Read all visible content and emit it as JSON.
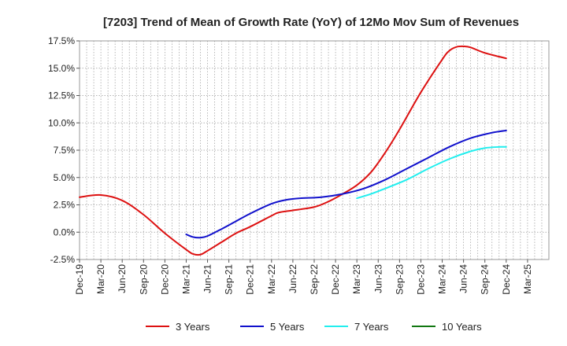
{
  "chart_data": {
    "type": "line",
    "title": "[7203]  Trend of Mean of Growth Rate (YoY) of 12Mo Mov Sum of Revenues",
    "xlabel": "",
    "ylabel": "",
    "ylim": [
      -2.5,
      17.5
    ],
    "yticks": [
      -2.5,
      0.0,
      2.5,
      5.0,
      7.5,
      10.0,
      12.5,
      15.0,
      17.5
    ],
    "ytick_labels": [
      "-2.5%",
      "0.0%",
      "2.5%",
      "5.0%",
      "7.5%",
      "10.0%",
      "12.5%",
      "15.0%",
      "17.5%"
    ],
    "xlim": [
      0,
      66
    ],
    "xtick_labels": [
      "Dec-19",
      "Mar-20",
      "Jun-20",
      "Sep-20",
      "Dec-20",
      "Mar-21",
      "Jun-21",
      "Sep-21",
      "Dec-21",
      "Mar-22",
      "Jun-22",
      "Sep-22",
      "Dec-22",
      "Mar-23",
      "Jun-23",
      "Sep-23",
      "Dec-23",
      "Mar-24",
      "Jun-24",
      "Sep-24",
      "Dec-24",
      "Mar-25"
    ],
    "grid": true,
    "legend_position": "bottom",
    "series": [
      {
        "name": "3 Years",
        "color": "#dd1111",
        "points": [
          [
            0,
            3.2
          ],
          [
            3,
            3.4
          ],
          [
            6,
            2.9
          ],
          [
            9,
            1.6
          ],
          [
            12,
            -0.1
          ],
          [
            15,
            -1.6
          ],
          [
            16,
            -2.0
          ],
          [
            17,
            -2.05
          ],
          [
            18,
            -1.7
          ],
          [
            20,
            -0.9
          ],
          [
            22,
            -0.1
          ],
          [
            24,
            0.5
          ],
          [
            27,
            1.5
          ],
          [
            28,
            1.8
          ],
          [
            30,
            2.0
          ],
          [
            33,
            2.3
          ],
          [
            35,
            2.8
          ],
          [
            37,
            3.5
          ],
          [
            39,
            4.3
          ],
          [
            41,
            5.5
          ],
          [
            43,
            7.3
          ],
          [
            45,
            9.4
          ],
          [
            48,
            12.8
          ],
          [
            51,
            15.8
          ],
          [
            52,
            16.6
          ],
          [
            53,
            16.95
          ],
          [
            54,
            17.0
          ],
          [
            55,
            16.9
          ],
          [
            57,
            16.4
          ],
          [
            60,
            15.9
          ]
        ]
      },
      {
        "name": "5 Years",
        "color": "#1111cc",
        "points": [
          [
            15,
            -0.2
          ],
          [
            16,
            -0.45
          ],
          [
            17,
            -0.5
          ],
          [
            18,
            -0.35
          ],
          [
            20,
            0.3
          ],
          [
            22,
            1.0
          ],
          [
            24,
            1.7
          ],
          [
            27,
            2.6
          ],
          [
            29,
            2.95
          ],
          [
            31,
            3.1
          ],
          [
            34,
            3.2
          ],
          [
            37,
            3.5
          ],
          [
            40,
            4.0
          ],
          [
            43,
            4.8
          ],
          [
            46,
            5.8
          ],
          [
            49,
            6.8
          ],
          [
            52,
            7.8
          ],
          [
            55,
            8.6
          ],
          [
            58,
            9.1
          ],
          [
            60,
            9.3
          ]
        ]
      },
      {
        "name": "7 Years",
        "color": "#22eeee",
        "points": [
          [
            39,
            3.1
          ],
          [
            41,
            3.5
          ],
          [
            43,
            4.0
          ],
          [
            46,
            4.8
          ],
          [
            49,
            5.8
          ],
          [
            52,
            6.7
          ],
          [
            55,
            7.4
          ],
          [
            57,
            7.7
          ],
          [
            59,
            7.8
          ],
          [
            60,
            7.8
          ]
        ]
      },
      {
        "name": "10 Years",
        "color": "#117711",
        "points": []
      }
    ]
  }
}
